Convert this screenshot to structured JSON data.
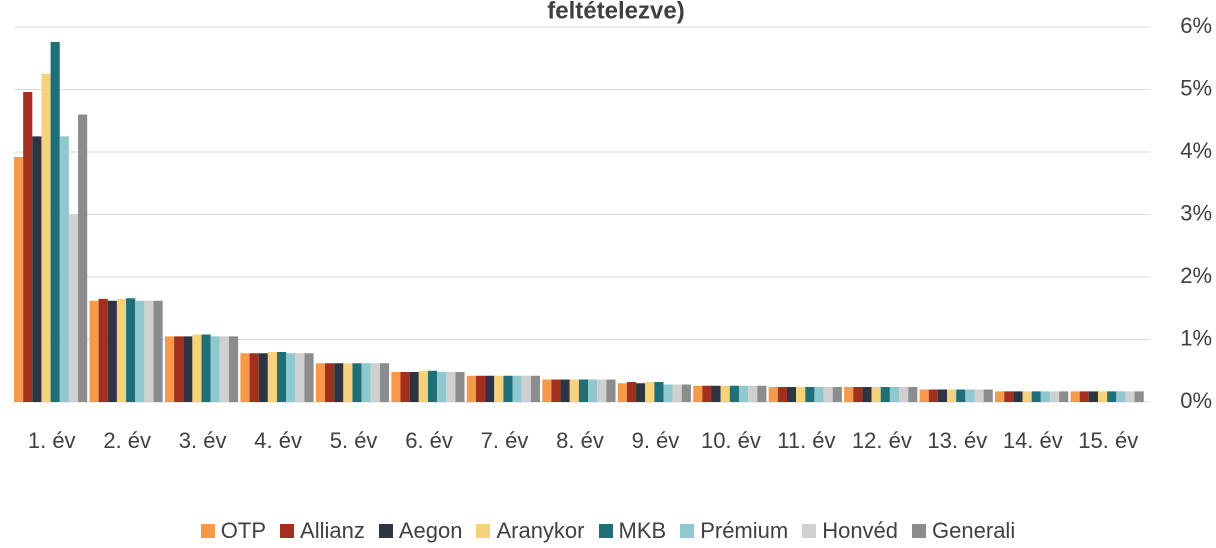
{
  "chart_data": {
    "type": "bar",
    "title": "feltételezve)",
    "categories": [
      "1. év",
      "2. év",
      "3. év",
      "4. év",
      "5. év",
      "6. év",
      "7. év",
      "8. év",
      "9. év",
      "10. év",
      "11. év",
      "12. év",
      "13. év",
      "14. év",
      "15. év"
    ],
    "series": [
      {
        "name": "OTP",
        "color": "#f59a4b",
        "values": [
          3.92,
          1.62,
          1.05,
          0.78,
          0.62,
          0.48,
          0.42,
          0.36,
          0.3,
          0.26,
          0.24,
          0.24,
          0.2,
          0.17,
          0.17
        ]
      },
      {
        "name": "Allianz",
        "color": "#a3301f",
        "values": [
          4.96,
          1.65,
          1.05,
          0.78,
          0.62,
          0.48,
          0.42,
          0.36,
          0.32,
          0.26,
          0.24,
          0.24,
          0.2,
          0.17,
          0.17
        ]
      },
      {
        "name": "Aegon",
        "color": "#2f3540",
        "values": [
          4.25,
          1.62,
          1.05,
          0.78,
          0.62,
          0.48,
          0.42,
          0.36,
          0.3,
          0.26,
          0.24,
          0.24,
          0.2,
          0.17,
          0.17
        ]
      },
      {
        "name": "Aranykor",
        "color": "#f6d27c",
        "values": [
          5.25,
          1.65,
          1.08,
          0.8,
          0.62,
          0.5,
          0.42,
          0.36,
          0.32,
          0.26,
          0.24,
          0.24,
          0.2,
          0.17,
          0.17
        ]
      },
      {
        "name": "MKB",
        "color": "#1f6f78",
        "values": [
          5.76,
          1.66,
          1.08,
          0.8,
          0.62,
          0.5,
          0.42,
          0.36,
          0.32,
          0.26,
          0.24,
          0.24,
          0.2,
          0.17,
          0.17
        ]
      },
      {
        "name": "Prémium",
        "color": "#8fc8cf",
        "values": [
          4.25,
          1.62,
          1.05,
          0.78,
          0.62,
          0.48,
          0.42,
          0.36,
          0.28,
          0.26,
          0.24,
          0.24,
          0.2,
          0.17,
          0.17
        ]
      },
      {
        "name": "Honvéd",
        "color": "#d0d0d0",
        "values": [
          3.0,
          1.62,
          1.05,
          0.78,
          0.62,
          0.48,
          0.42,
          0.36,
          0.28,
          0.26,
          0.24,
          0.24,
          0.2,
          0.17,
          0.17
        ]
      },
      {
        "name": "Generali",
        "color": "#8c8c8c",
        "values": [
          4.6,
          1.62,
          1.05,
          0.78,
          0.62,
          0.48,
          0.42,
          0.36,
          0.28,
          0.26,
          0.24,
          0.24,
          0.2,
          0.17,
          0.17
        ]
      }
    ],
    "ylim": [
      0,
      6
    ],
    "yticks": [
      {
        "value": 0,
        "label": "0%"
      },
      {
        "value": 1,
        "label": "1%"
      },
      {
        "value": 2,
        "label": "2%"
      },
      {
        "value": 3,
        "label": "3%"
      },
      {
        "value": 4,
        "label": "4%"
      },
      {
        "value": 5,
        "label": "5%"
      },
      {
        "value": 6,
        "label": "6%"
      }
    ],
    "grid": true
  }
}
